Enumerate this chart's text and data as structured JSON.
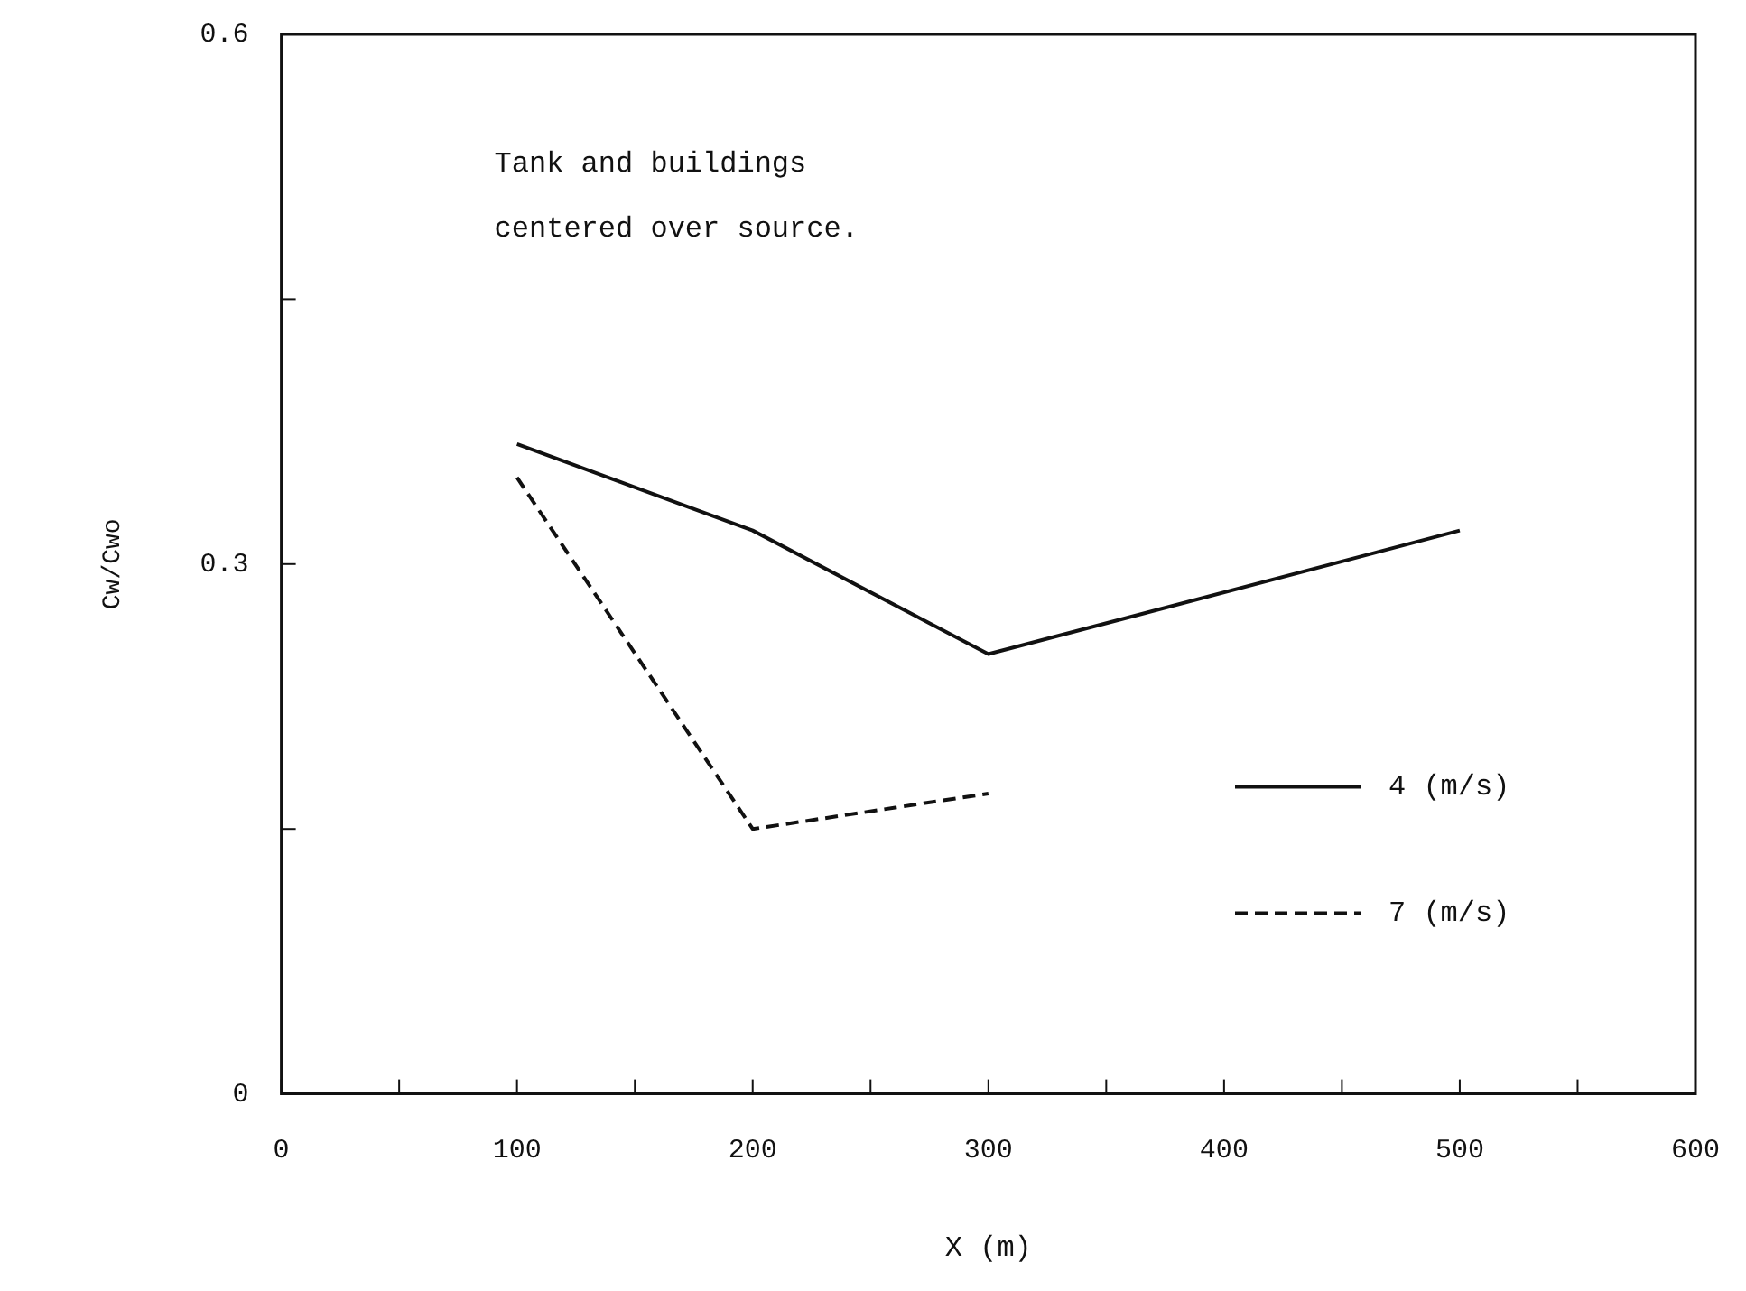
{
  "chart_data": {
    "type": "line",
    "xlabel": "X (m)",
    "ylabel": "Cw/Cwo",
    "annotations": [
      "Tank and buildings",
      "centered over source."
    ],
    "xlim": [
      0,
      600
    ],
    "xticks": [
      0,
      {
        "value": 50,
        "label": null
      },
      100,
      {
        "value": 150,
        "label": null
      },
      200,
      {
        "value": 250,
        "label": null
      },
      300,
      {
        "value": 350,
        "label": null
      },
      400,
      {
        "value": 450,
        "label": null
      },
      500,
      {
        "value": 550,
        "label": null
      },
      600
    ],
    "ylim": [
      0,
      0.6
    ],
    "yticks": [
      0,
      {
        "value": 0.15,
        "label": null
      },
      0.3,
      {
        "value": 0.45,
        "label": null
      },
      0.6
    ],
    "grid": false,
    "legend": "bottom right",
    "marker": "none",
    "series": [
      {
        "name": "4 (m/s)",
        "color": "#111111",
        "line_style": "solid",
        "x": [
          100,
          200,
          300,
          500
        ],
        "values": [
          0.368,
          0.319,
          0.249,
          0.319
        ]
      },
      {
        "name": "7 (m/s)",
        "color": "#111111",
        "line_style": "dashed",
        "x": [
          100,
          200,
          300
        ],
        "values": [
          0.349,
          0.15,
          0.17
        ]
      }
    ]
  }
}
